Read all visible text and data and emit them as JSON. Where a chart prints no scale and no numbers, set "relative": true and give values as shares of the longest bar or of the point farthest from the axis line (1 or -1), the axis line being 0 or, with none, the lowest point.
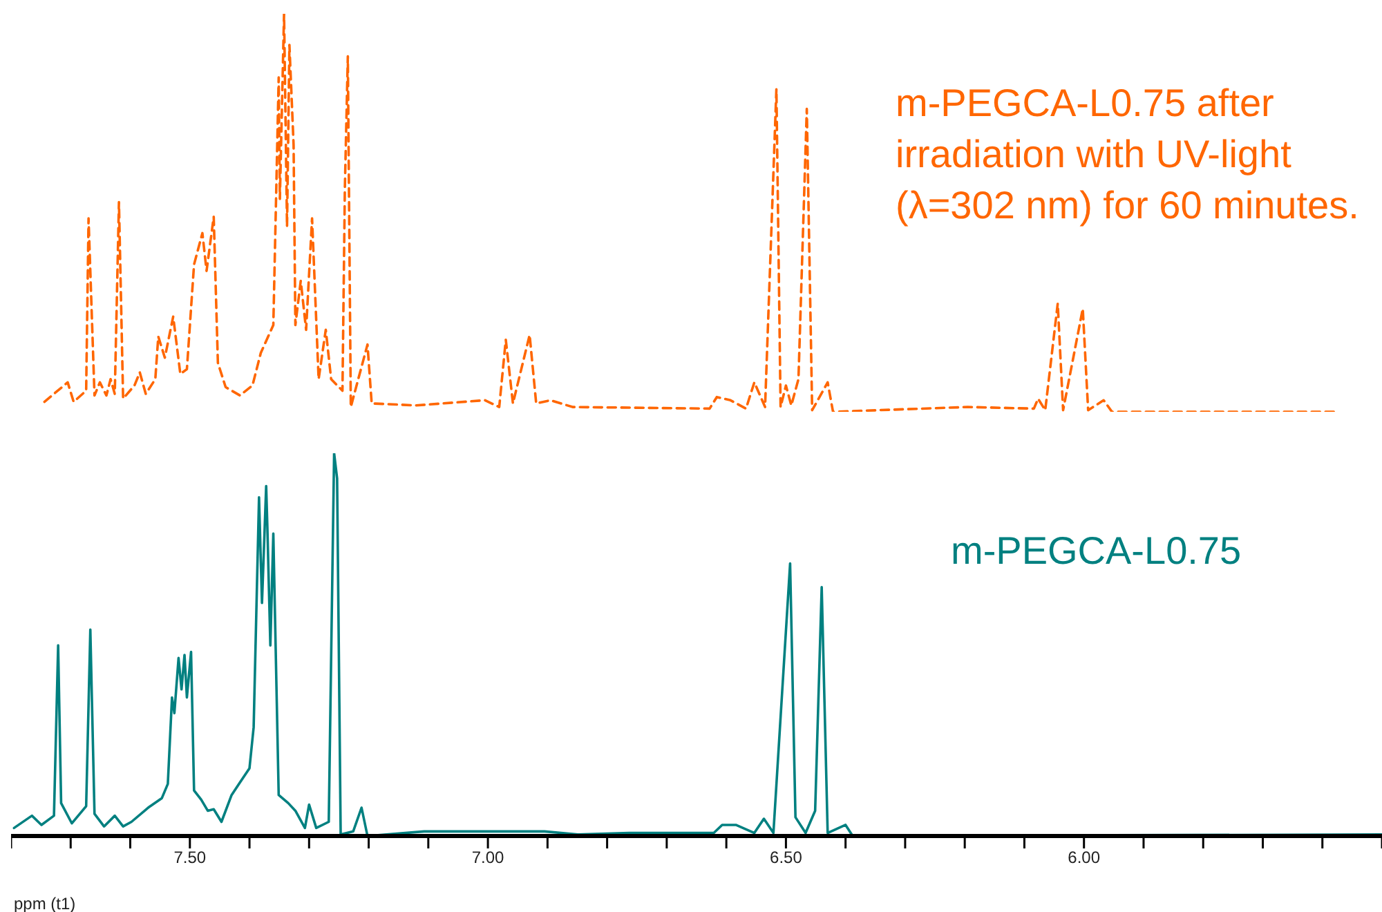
{
  "chart_data": [
    {
      "type": "line",
      "relative": true,
      "xlim": [
        7.8,
        5.5
      ],
      "tick_labels": false,
      "line_style": "dashed",
      "series": [
        {
          "name": "m-PEGCA-L0.75 after irradiation with UV-light (λ=302 nm) for 60 minutes.",
          "color": "#ff6600",
          "x": [
            7.744,
            7.705,
            7.695,
            7.674,
            7.67,
            7.66,
            7.651,
            7.64,
            7.633,
            7.626,
            7.619,
            7.612,
            7.593,
            7.584,
            7.574,
            7.558,
            7.553,
            7.542,
            7.528,
            7.516,
            7.505,
            7.493,
            7.479,
            7.472,
            7.46,
            7.453,
            7.44,
            7.416,
            7.395,
            7.381,
            7.36,
            7.351,
            7.349,
            7.342,
            7.337,
            7.333,
            7.326,
            7.323,
            7.314,
            7.305,
            7.295,
            7.284,
            7.272,
            7.263,
            7.244,
            7.24,
            7.235,
            7.23,
            7.202,
            7.195,
            7.121,
            7.005,
            6.981,
            6.97,
            6.958,
            6.93,
            6.919,
            6.895,
            6.858,
            6.628,
            6.616,
            6.593,
            6.567,
            6.553,
            6.535,
            6.516,
            6.509,
            6.5,
            6.491,
            6.479,
            6.465,
            6.456,
            6.43,
            6.421,
            6.195,
            6.084,
            6.077,
            6.065,
            6.044,
            6.035,
            6.002,
            5.993,
            5.967,
            5.953,
            5.579
          ],
          "values": [
            0.025,
            0.074,
            0.025,
            0.053,
            0.486,
            0.041,
            0.074,
            0.041,
            0.082,
            0.045,
            0.527,
            0.033,
            0.066,
            0.099,
            0.045,
            0.082,
            0.189,
            0.136,
            0.239,
            0.095,
            0.107,
            0.37,
            0.449,
            0.354,
            0.49,
            0.123,
            0.062,
            0.041,
            0.066,
            0.148,
            0.218,
            0.84,
            0.535,
            1,
            0.465,
            0.922,
            0.671,
            0.218,
            0.329,
            0.206,
            0.486,
            0.082,
            0.206,
            0.082,
            0.053,
            0.56,
            0.893,
            0.012,
            0.169,
            0.021,
            0.016,
            0.029,
            0.012,
            0.181,
            0.021,
            0.193,
            0.021,
            0.029,
            0.012,
            0.008,
            0.037,
            0.029,
            0.008,
            0.074,
            0.012,
            0.811,
            0.012,
            0.066,
            0.016,
            0.082,
            0.761,
            0.004,
            0.074,
            0,
            0.012,
            0.008,
            0.033,
            0.004,
            0.272,
            0.004,
            0.259,
            0.004,
            0.029,
            0,
            0
          ]
        }
      ]
    },
    {
      "type": "line",
      "relative": true,
      "xlim": [
        7.8,
        5.5
      ],
      "xlabel": "ppm (t1)",
      "tick_labels": "x",
      "line_style": "solid",
      "xticks": [
        {
          "value": 7.8,
          "label": null
        },
        {
          "value": 7.7,
          "label": null
        },
        {
          "value": 7.6,
          "label": null
        },
        {
          "value": 7.5,
          "label": "7.50"
        },
        {
          "value": 7.4,
          "label": null
        },
        {
          "value": 7.3,
          "label": null
        },
        {
          "value": 7.2,
          "label": null
        },
        {
          "value": 7.1,
          "label": null
        },
        {
          "value": 7.0,
          "label": "7.00"
        },
        {
          "value": 6.9,
          "label": null
        },
        {
          "value": 6.8,
          "label": null
        },
        {
          "value": 6.7,
          "label": null
        },
        {
          "value": 6.6,
          "label": null
        },
        {
          "value": 6.5,
          "label": "6.50"
        },
        {
          "value": 6.4,
          "label": null
        },
        {
          "value": 6.3,
          "label": null
        },
        {
          "value": 6.2,
          "label": null
        },
        {
          "value": 6.1,
          "label": null
        },
        {
          "value": 6.0,
          "label": "6.00"
        },
        {
          "value": 5.9,
          "label": null
        },
        {
          "value": 5.8,
          "label": null
        },
        {
          "value": 5.7,
          "label": null
        },
        {
          "value": 5.6,
          "label": null
        },
        {
          "value": 5.5,
          "label": null
        }
      ],
      "series": [
        {
          "name": "m-PEGCA-L0.75",
          "color": "#008080",
          "x": [
            7.795,
            7.765,
            7.749,
            7.728,
            7.721,
            7.716,
            7.698,
            7.674,
            7.667,
            7.66,
            7.644,
            7.626,
            7.612,
            7.598,
            7.57,
            7.547,
            7.537,
            7.53,
            7.526,
            7.519,
            7.514,
            7.509,
            7.505,
            7.498,
            7.493,
            7.481,
            7.47,
            7.46,
            7.447,
            7.43,
            7.416,
            7.4,
            7.393,
            7.384,
            7.379,
            7.372,
            7.37,
            7.365,
            7.36,
            7.351,
            7.335,
            7.323,
            7.307,
            7.3,
            7.288,
            7.267,
            7.258,
            7.253,
            7.247,
            7.226,
            7.212,
            7.202,
            7.107,
            6.905,
            6.849,
            6.763,
            6.621,
            6.607,
            6.584,
            6.553,
            6.537,
            6.521,
            6.493,
            6.484,
            6.467,
            6.451,
            6.44,
            6.43,
            6.4,
            6.388,
            5.5
          ],
          "values": [
            0.021,
            0.053,
            0.029,
            0.053,
            0.498,
            0.086,
            0.033,
            0.078,
            0.539,
            0.058,
            0.025,
            0.053,
            0.025,
            0.037,
            0.074,
            0.099,
            0.136,
            0.362,
            0.321,
            0.465,
            0.383,
            0.473,
            0.362,
            0.481,
            0.119,
            0.095,
            0.066,
            0.07,
            0.037,
            0.107,
            0.14,
            0.177,
            0.284,
            0.885,
            0.609,
            0.914,
            0.807,
            0.498,
            0.79,
            0.107,
            0.086,
            0.066,
            0.021,
            0.082,
            0.021,
            0.037,
            1,
            0.934,
            0.004,
            0.012,
            0.074,
            0,
            0.012,
            0.012,
            0.004,
            0.008,
            0.008,
            0.029,
            0.029,
            0.008,
            0.045,
            0.008,
            0.712,
            0.049,
            0.008,
            0.066,
            0.65,
            0.008,
            0.029,
            0,
            0.004
          ]
        }
      ]
    }
  ]
}
